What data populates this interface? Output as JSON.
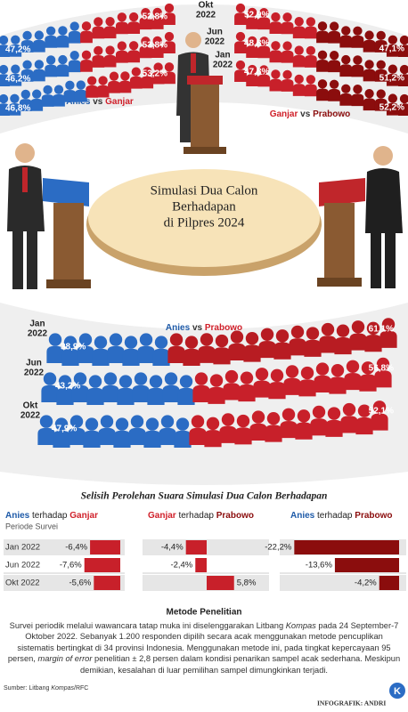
{
  "top": {
    "left": {
      "a": "Anies",
      "vs": "vs",
      "b": "Ganjar",
      "rows": [
        {
          "left": "47,2%",
          "right": "52,8%"
        },
        {
          "left": "46,2%",
          "right": "53,8%"
        },
        {
          "left": "46,8%",
          "right": "53,2%"
        }
      ]
    },
    "right": {
      "a": "Ganjar",
      "vs": "vs",
      "b": "Prabowo",
      "rows": [
        {
          "left": "52,9%",
          "right": "47,1%"
        },
        {
          "left": "48,8%",
          "right": "51,2%"
        },
        {
          "left": "47,8%",
          "right": "52,2%"
        }
      ]
    },
    "periods": [
      {
        "month": "Okt",
        "year": "2022"
      },
      {
        "month": "Jun",
        "year": "2022"
      },
      {
        "month": "Jan",
        "year": "2022"
      }
    ]
  },
  "title": [
    "Simulasi Dua Calon",
    "Berhadapan",
    "di Pilpres 2024"
  ],
  "bottom": {
    "a": "Anies",
    "vs": "vs",
    "b": "Prabowo",
    "rows": [
      {
        "month": "Jan",
        "year": "2022",
        "left": "38,9%",
        "right": "61,1%"
      },
      {
        "month": "Jun",
        "year": "2022",
        "left": "43,2%",
        "right": "56,8%"
      },
      {
        "month": "Okt",
        "year": "2022",
        "left": "47,9%",
        "right": "52,1%"
      }
    ]
  },
  "diff": {
    "title": "Selisih Perolehan Suara Simulasi Dua Calon Berhadapan",
    "period_label": "Periode Survei",
    "periods": [
      "Jan 2022",
      "Jun 2022",
      "Okt 2022"
    ],
    "panels": [
      {
        "a": "Anies",
        "mid": "terhadap",
        "b": "Ganjar",
        "values": [
          -6.4,
          -7.6,
          -5.6
        ],
        "value_labels": [
          "-6,4%",
          "-7,6%",
          "-5,6%"
        ]
      },
      {
        "a": "Ganjar",
        "mid": "terhadap",
        "b": "Prabowo",
        "values": [
          -4.4,
          -2.4,
          5.8
        ],
        "value_labels": [
          "-4,4%",
          "-2,4%",
          "5,8%"
        ]
      },
      {
        "a": "Anies",
        "mid": "terhadap",
        "b": "Prabowo",
        "values": [
          -22.2,
          -13.6,
          -4.2
        ],
        "value_labels": [
          "-22,2%",
          "-13,6%",
          "-4,2%"
        ]
      }
    ]
  },
  "method": {
    "title": "Metode Penelitian",
    "text": [
      "Survei periodik melalui wawancara tatap muka ini diselenggarakan Litbang ",
      "Kompas",
      " pada 24 September-7 Oktober 2022. Sebanyak 1.200 responden dipilih secara acak menggunakan metode pencuplikan sistematis bertingkat di 34 provinsi Indonesia. Menggunakan metode ini, pada tingkat kepercayaan 95 persen, ",
      "margin of error",
      " penelitian ± 2,8  persen dalam kondisi penarikan sampel acak sederhana. Meskipun demikian, kesalahan di luar pemilihan sampel dimungkinkan terjadi."
    ]
  },
  "source": [
    "Sumber: Litbang ",
    "Kompas",
    "/RFC"
  ],
  "credit": "INFOGRAFIK: ANDRI",
  "logo": "K"
}
